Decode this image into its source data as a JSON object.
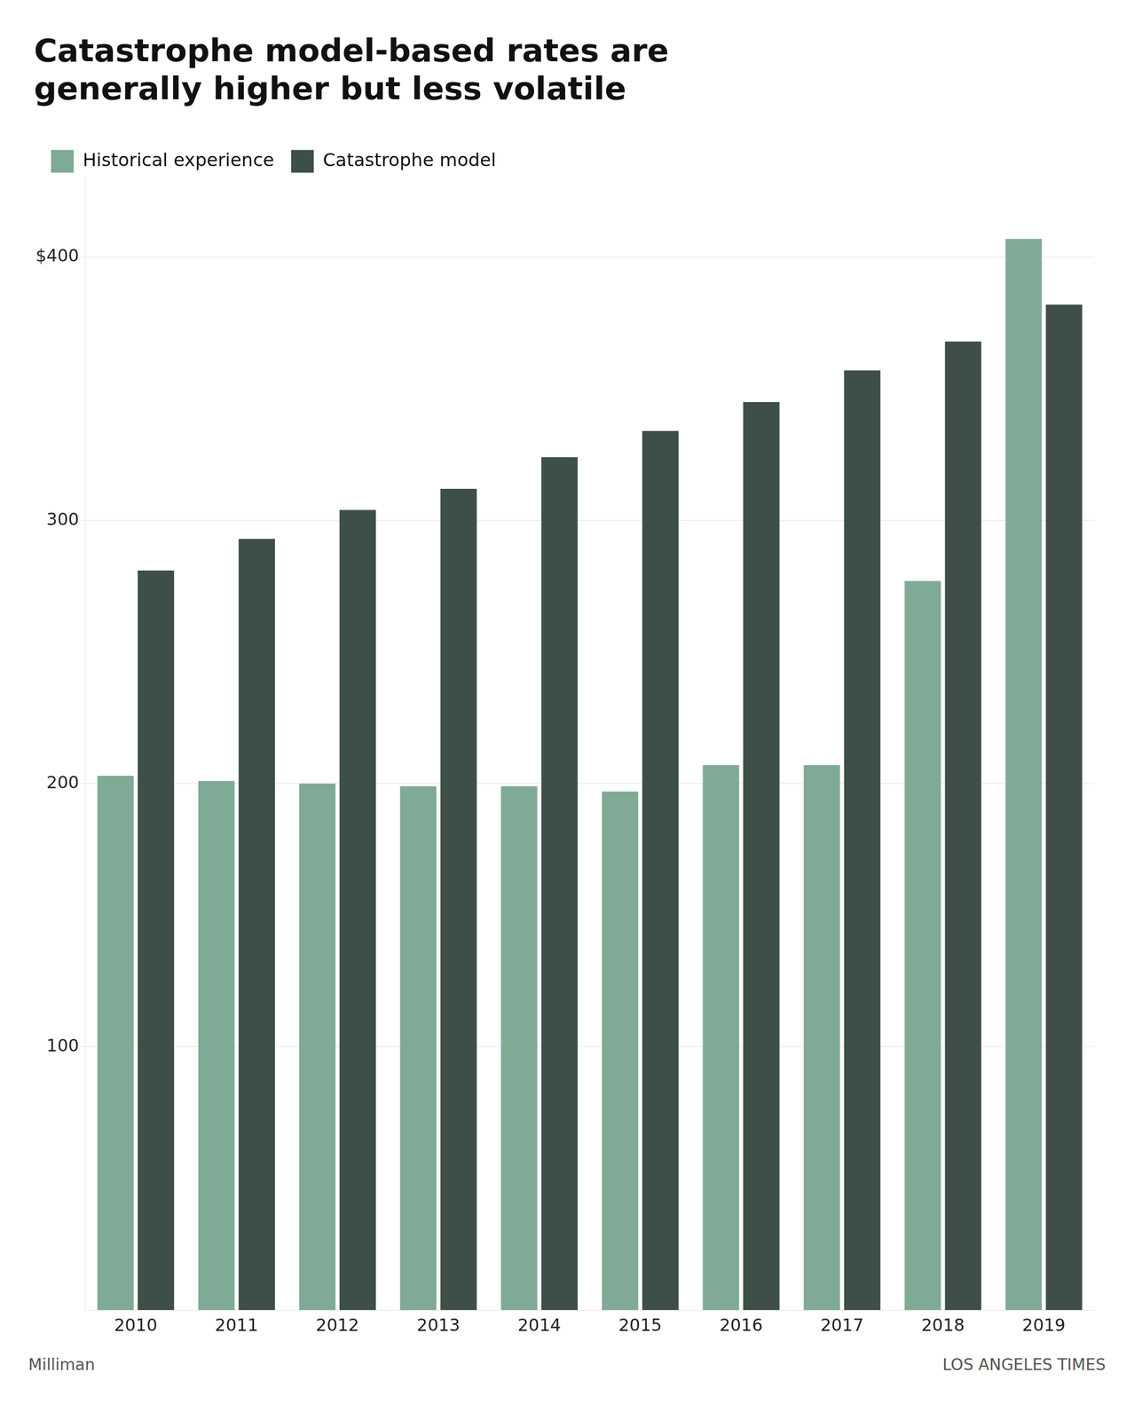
{
  "chart_data": {
    "type": "bar",
    "title": "Catastrophe model-based rates are\ngenerally higher but less volatile",
    "categories": [
      2010,
      2011,
      2012,
      2013,
      2014,
      2015,
      2016,
      2017,
      2018,
      2019
    ],
    "series": [
      {
        "name": "Historical experience",
        "color": "#7faa96",
        "values": [
          203,
          201,
          200,
          199,
          199,
          197,
          207,
          207,
          277,
          407
        ]
      },
      {
        "name": "Catastrophe model",
        "color": "#3d4f47",
        "values": [
          281,
          293,
          304,
          312,
          324,
          334,
          345,
          357,
          368,
          382
        ]
      }
    ],
    "ylim": [
      0,
      430
    ],
    "yticks": [
      100,
      200,
      300,
      {
        "value": 400,
        "label": "$400"
      }
    ],
    "grid": true,
    "legend": "top",
    "annotations": [
      "Milliman",
      "LOS ANGELES TIMES"
    ]
  }
}
